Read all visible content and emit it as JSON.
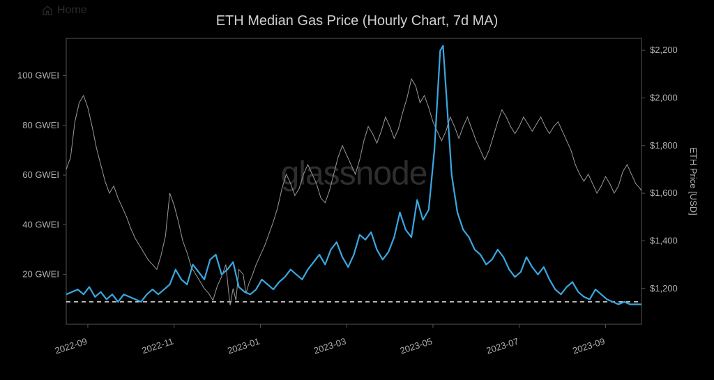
{
  "ui_background": {
    "home_label": "Home"
  },
  "chart": {
    "type": "line",
    "title": "ETH Median Gas Price (Hourly Chart, 7d MA)",
    "watermark": "glassnode",
    "background_color": "#000000",
    "plot_border_color": "#555555",
    "plot_border_width": 1,
    "title_color": "#d0d0d0",
    "title_fontsize": 20,
    "tick_color": "#b0b0b0",
    "tick_fontsize": 13,
    "x_axis": {
      "min": 0,
      "max": 400,
      "ticks": [
        {
          "pos": 15,
          "label": "2022-09"
        },
        {
          "pos": 75,
          "label": "2022-11"
        },
        {
          "pos": 135,
          "label": "2023-01"
        },
        {
          "pos": 195,
          "label": "2023-03"
        },
        {
          "pos": 255,
          "label": "2023-05"
        },
        {
          "pos": 315,
          "label": "2023-07"
        },
        {
          "pos": 375,
          "label": "2023-09"
        }
      ],
      "tick_rotation_deg": -18
    },
    "y_left": {
      "min": 0,
      "max": 115,
      "ticks": [
        {
          "val": 20,
          "label": "20 GWEI"
        },
        {
          "val": 40,
          "label": "40 GWEI"
        },
        {
          "val": 60,
          "label": "60 GWEI"
        },
        {
          "val": 80,
          "label": "80 GWEI"
        },
        {
          "val": 100,
          "label": "100 GWEI"
        }
      ]
    },
    "y_right": {
      "label": "ETH Price [USD]",
      "min": 1050,
      "max": 2250,
      "ticks": [
        {
          "val": 1200,
          "label": "$1,200"
        },
        {
          "val": 1400,
          "label": "$1,400"
        },
        {
          "val": 1600,
          "label": "$1,600"
        },
        {
          "val": 1800,
          "label": "$1,800"
        },
        {
          "val": 2000,
          "label": "$2,000"
        },
        {
          "val": 2200,
          "label": "$2,200"
        }
      ]
    },
    "reference_line": {
      "y_left_value": 9,
      "color": "#e0e0e0",
      "dash": "6,5",
      "width": 1.5
    },
    "series_gas": {
      "axis": "left",
      "color": "#3aa7e0",
      "width": 2.2,
      "data": [
        [
          0,
          12
        ],
        [
          4,
          13
        ],
        [
          8,
          14
        ],
        [
          12,
          12
        ],
        [
          16,
          15
        ],
        [
          20,
          11
        ],
        [
          24,
          13
        ],
        [
          28,
          10
        ],
        [
          32,
          12
        ],
        [
          36,
          9
        ],
        [
          40,
          12
        ],
        [
          44,
          11
        ],
        [
          48,
          10
        ],
        [
          52,
          9
        ],
        [
          56,
          12
        ],
        [
          60,
          14
        ],
        [
          64,
          12
        ],
        [
          68,
          14
        ],
        [
          72,
          16
        ],
        [
          76,
          22
        ],
        [
          80,
          18
        ],
        [
          84,
          16
        ],
        [
          88,
          24
        ],
        [
          92,
          21
        ],
        [
          96,
          18
        ],
        [
          100,
          26
        ],
        [
          104,
          28
        ],
        [
          108,
          20
        ],
        [
          112,
          22
        ],
        [
          116,
          25
        ],
        [
          120,
          15
        ],
        [
          124,
          13
        ],
        [
          128,
          12
        ],
        [
          132,
          14
        ],
        [
          136,
          18
        ],
        [
          140,
          16
        ],
        [
          144,
          14
        ],
        [
          148,
          17
        ],
        [
          152,
          19
        ],
        [
          156,
          22
        ],
        [
          160,
          20
        ],
        [
          164,
          18
        ],
        [
          168,
          22
        ],
        [
          172,
          25
        ],
        [
          176,
          28
        ],
        [
          180,
          24
        ],
        [
          184,
          30
        ],
        [
          188,
          33
        ],
        [
          192,
          27
        ],
        [
          196,
          23
        ],
        [
          200,
          28
        ],
        [
          204,
          36
        ],
        [
          208,
          34
        ],
        [
          212,
          37
        ],
        [
          216,
          30
        ],
        [
          220,
          26
        ],
        [
          224,
          29
        ],
        [
          228,
          35
        ],
        [
          232,
          45
        ],
        [
          236,
          38
        ],
        [
          240,
          35
        ],
        [
          244,
          50
        ],
        [
          248,
          42
        ],
        [
          252,
          46
        ],
        [
          256,
          70
        ],
        [
          260,
          110
        ],
        [
          262,
          112
        ],
        [
          264,
          95
        ],
        [
          268,
          60
        ],
        [
          272,
          45
        ],
        [
          276,
          38
        ],
        [
          280,
          35
        ],
        [
          284,
          30
        ],
        [
          288,
          28
        ],
        [
          292,
          24
        ],
        [
          296,
          26
        ],
        [
          300,
          30
        ],
        [
          304,
          27
        ],
        [
          308,
          22
        ],
        [
          312,
          19
        ],
        [
          316,
          21
        ],
        [
          320,
          27
        ],
        [
          324,
          23
        ],
        [
          328,
          20
        ],
        [
          332,
          23
        ],
        [
          336,
          18
        ],
        [
          340,
          14
        ],
        [
          344,
          12
        ],
        [
          348,
          15
        ],
        [
          352,
          17
        ],
        [
          356,
          13
        ],
        [
          360,
          11
        ],
        [
          364,
          10
        ],
        [
          368,
          14
        ],
        [
          372,
          12
        ],
        [
          376,
          10
        ],
        [
          380,
          9
        ],
        [
          384,
          8
        ],
        [
          388,
          9
        ],
        [
          392,
          8
        ],
        [
          396,
          8
        ],
        [
          400,
          8
        ]
      ]
    },
    "series_price": {
      "axis": "right",
      "color": "#9a9a9a",
      "width": 1.0,
      "data": [
        [
          0,
          1700
        ],
        [
          3,
          1750
        ],
        [
          6,
          1900
        ],
        [
          9,
          1980
        ],
        [
          12,
          2010
        ],
        [
          15,
          1960
        ],
        [
          18,
          1880
        ],
        [
          21,
          1790
        ],
        [
          24,
          1720
        ],
        [
          27,
          1650
        ],
        [
          30,
          1600
        ],
        [
          33,
          1630
        ],
        [
          36,
          1580
        ],
        [
          39,
          1540
        ],
        [
          42,
          1500
        ],
        [
          45,
          1450
        ],
        [
          48,
          1410
        ],
        [
          51,
          1380
        ],
        [
          54,
          1350
        ],
        [
          57,
          1320
        ],
        [
          60,
          1300
        ],
        [
          63,
          1280
        ],
        [
          66,
          1340
        ],
        [
          69,
          1420
        ],
        [
          72,
          1600
        ],
        [
          75,
          1550
        ],
        [
          78,
          1480
        ],
        [
          81,
          1400
        ],
        [
          84,
          1350
        ],
        [
          87,
          1290
        ],
        [
          90,
          1260
        ],
        [
          93,
          1230
        ],
        [
          96,
          1200
        ],
        [
          99,
          1180
        ],
        [
          102,
          1150
        ],
        [
          105,
          1210
        ],
        [
          108,
          1250
        ],
        [
          111,
          1300
        ],
        [
          113,
          1180
        ],
        [
          114,
          1130
        ],
        [
          116,
          1200
        ],
        [
          118,
          1150
        ],
        [
          120,
          1280
        ],
        [
          123,
          1260
        ],
        [
          125,
          1180
        ],
        [
          127,
          1220
        ],
        [
          129,
          1250
        ],
        [
          132,
          1300
        ],
        [
          135,
          1340
        ],
        [
          138,
          1380
        ],
        [
          141,
          1430
        ],
        [
          144,
          1480
        ],
        [
          147,
          1540
        ],
        [
          150,
          1620
        ],
        [
          153,
          1680
        ],
        [
          156,
          1640
        ],
        [
          159,
          1590
        ],
        [
          162,
          1620
        ],
        [
          165,
          1680
        ],
        [
          168,
          1720
        ],
        [
          171,
          1680
        ],
        [
          174,
          1640
        ],
        [
          177,
          1580
        ],
        [
          180,
          1560
        ],
        [
          183,
          1610
        ],
        [
          186,
          1680
        ],
        [
          189,
          1750
        ],
        [
          192,
          1800
        ],
        [
          195,
          1760
        ],
        [
          198,
          1720
        ],
        [
          201,
          1680
        ],
        [
          204,
          1740
        ],
        [
          207,
          1820
        ],
        [
          210,
          1880
        ],
        [
          213,
          1850
        ],
        [
          216,
          1810
        ],
        [
          219,
          1860
        ],
        [
          222,
          1920
        ],
        [
          225,
          1880
        ],
        [
          228,
          1830
        ],
        [
          231,
          1870
        ],
        [
          234,
          1940
        ],
        [
          237,
          2000
        ],
        [
          240,
          2080
        ],
        [
          243,
          2050
        ],
        [
          246,
          1980
        ],
        [
          249,
          2010
        ],
        [
          252,
          1960
        ],
        [
          255,
          1900
        ],
        [
          258,
          1860
        ],
        [
          261,
          1820
        ],
        [
          264,
          1860
        ],
        [
          267,
          1920
        ],
        [
          270,
          1880
        ],
        [
          273,
          1830
        ],
        [
          276,
          1880
        ],
        [
          279,
          1920
        ],
        [
          282,
          1870
        ],
        [
          285,
          1820
        ],
        [
          288,
          1780
        ],
        [
          291,
          1740
        ],
        [
          294,
          1780
        ],
        [
          297,
          1840
        ],
        [
          300,
          1900
        ],
        [
          303,
          1950
        ],
        [
          306,
          1920
        ],
        [
          309,
          1880
        ],
        [
          312,
          1850
        ],
        [
          315,
          1880
        ],
        [
          318,
          1920
        ],
        [
          321,
          1890
        ],
        [
          324,
          1860
        ],
        [
          327,
          1890
        ],
        [
          330,
          1920
        ],
        [
          333,
          1880
        ],
        [
          336,
          1850
        ],
        [
          339,
          1880
        ],
        [
          342,
          1900
        ],
        [
          345,
          1860
        ],
        [
          348,
          1820
        ],
        [
          351,
          1780
        ],
        [
          354,
          1720
        ],
        [
          357,
          1680
        ],
        [
          360,
          1650
        ],
        [
          363,
          1680
        ],
        [
          366,
          1640
        ],
        [
          369,
          1600
        ],
        [
          372,
          1630
        ],
        [
          375,
          1670
        ],
        [
          378,
          1640
        ],
        [
          381,
          1600
        ],
        [
          384,
          1630
        ],
        [
          387,
          1690
        ],
        [
          390,
          1720
        ],
        [
          393,
          1680
        ],
        [
          396,
          1640
        ],
        [
          399,
          1620
        ],
        [
          400,
          1610
        ]
      ]
    }
  }
}
